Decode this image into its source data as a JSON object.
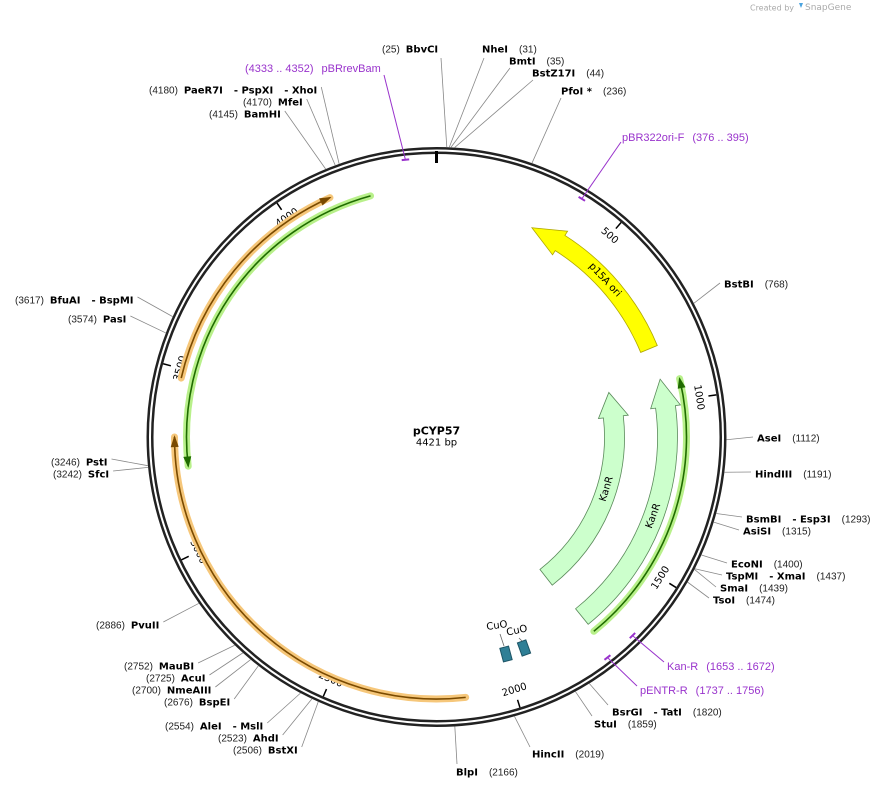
{
  "header": {
    "credit": "Created by",
    "brand": "SnapGene"
  },
  "plasmid": {
    "name": "pCYP57",
    "length": 4421,
    "length_label": "4421 bp",
    "ticks": [
      500,
      1000,
      1500,
      2000,
      2500,
      3000,
      3500,
      4000
    ]
  },
  "enzymes": [
    {
      "names": [
        "BbvCI"
      ],
      "position": 25,
      "position_label": "(25)"
    },
    {
      "names": [
        "NheI"
      ],
      "position": 31,
      "position_label": "(31)"
    },
    {
      "names": [
        "BmtI"
      ],
      "position": 35,
      "position_label": "(35)"
    },
    {
      "names": [
        "BstZ17I"
      ],
      "position": 44,
      "position_label": "(44)"
    },
    {
      "names": [
        "PfoI *"
      ],
      "position": 236,
      "position_label": "(236)"
    },
    {
      "names": [
        "BstBI"
      ],
      "position": 768,
      "position_label": "(768)"
    },
    {
      "names": [
        "AseI"
      ],
      "position": 1112,
      "position_label": "(1112)"
    },
    {
      "names": [
        "HindIII"
      ],
      "position": 1191,
      "position_label": "(1191)"
    },
    {
      "names": [
        "BsmBI",
        "- Esp3I"
      ],
      "position": 1293,
      "position_label": "(1293)"
    },
    {
      "names": [
        "AsiSI"
      ],
      "position": 1315,
      "position_label": "(1315)"
    },
    {
      "names": [
        "EcoNI"
      ],
      "position": 1400,
      "position_label": "(1400)"
    },
    {
      "names": [
        "TspMI",
        "- XmaI"
      ],
      "position": 1437,
      "position_label": "(1437)"
    },
    {
      "names": [
        "SmaI"
      ],
      "position": 1439,
      "position_label": "(1439)"
    },
    {
      "names": [
        "TsoI"
      ],
      "position": 1474,
      "position_label": "(1474)"
    },
    {
      "names": [
        "BsrGI",
        "- TatI"
      ],
      "position": 1820,
      "position_label": "(1820)"
    },
    {
      "names": [
        "StuI"
      ],
      "position": 1859,
      "position_label": "(1859)"
    },
    {
      "names": [
        "HincII"
      ],
      "position": 2019,
      "position_label": "(2019)"
    },
    {
      "names": [
        "BlpI"
      ],
      "position": 2166,
      "position_label": "(2166)"
    },
    {
      "names": [
        "BstXI"
      ],
      "position": 2506,
      "position_label": "(2506)"
    },
    {
      "names": [
        "AhdI"
      ],
      "position": 2523,
      "position_label": "(2523)"
    },
    {
      "names": [
        "AleI",
        "- MslI"
      ],
      "position": 2554,
      "position_label": "(2554)"
    },
    {
      "names": [
        "BspEI"
      ],
      "position": 2676,
      "position_label": "(2676)"
    },
    {
      "names": [
        "NmeAIII"
      ],
      "position": 2700,
      "position_label": "(2700)"
    },
    {
      "names": [
        "AcuI"
      ],
      "position": 2725,
      "position_label": "(2725)"
    },
    {
      "names": [
        "MauBI"
      ],
      "position": 2752,
      "position_label": "(2752)"
    },
    {
      "names": [
        "PvuII"
      ],
      "position": 2886,
      "position_label": "(2886)"
    },
    {
      "names": [
        "SfcI"
      ],
      "position": 3242,
      "position_label": "(3242)"
    },
    {
      "names": [
        "PstI"
      ],
      "position": 3246,
      "position_label": "(3246)"
    },
    {
      "names": [
        "PasI"
      ],
      "position": 3574,
      "position_label": "(3574)"
    },
    {
      "names": [
        "BfuAI",
        "- BspMI"
      ],
      "position": 3617,
      "position_label": "(3617)"
    },
    {
      "names": [
        "BamHI"
      ],
      "position": 4145,
      "position_label": "(4145)"
    },
    {
      "names": [
        "MfeI"
      ],
      "position": 4170,
      "position_label": "(4170)"
    },
    {
      "names": [
        "PaeR7I",
        "- PspXI",
        "- XhoI"
      ],
      "position": 4180,
      "position_label": "(4180)"
    }
  ],
  "primers": [
    {
      "name": "pBRrevBam",
      "start": 4333,
      "end": 4352,
      "range_label": "(4333 .. 4352)"
    },
    {
      "name": "pBR322ori-F",
      "start": 376,
      "end": 395,
      "range_label": "(376 .. 395)"
    },
    {
      "name": "Kan-R",
      "start": 1653,
      "end": 1672,
      "range_label": "(1653 .. 1672)"
    },
    {
      "name": "pENTR-R",
      "start": 1737,
      "end": 1756,
      "range_label": "(1737 .. 1756)"
    }
  ],
  "features": [
    {
      "label": "p15A ori"
    },
    {
      "label": "KanR"
    },
    {
      "label": "KanR"
    },
    {
      "label": "CuO"
    },
    {
      "label": "CuO"
    }
  ]
}
